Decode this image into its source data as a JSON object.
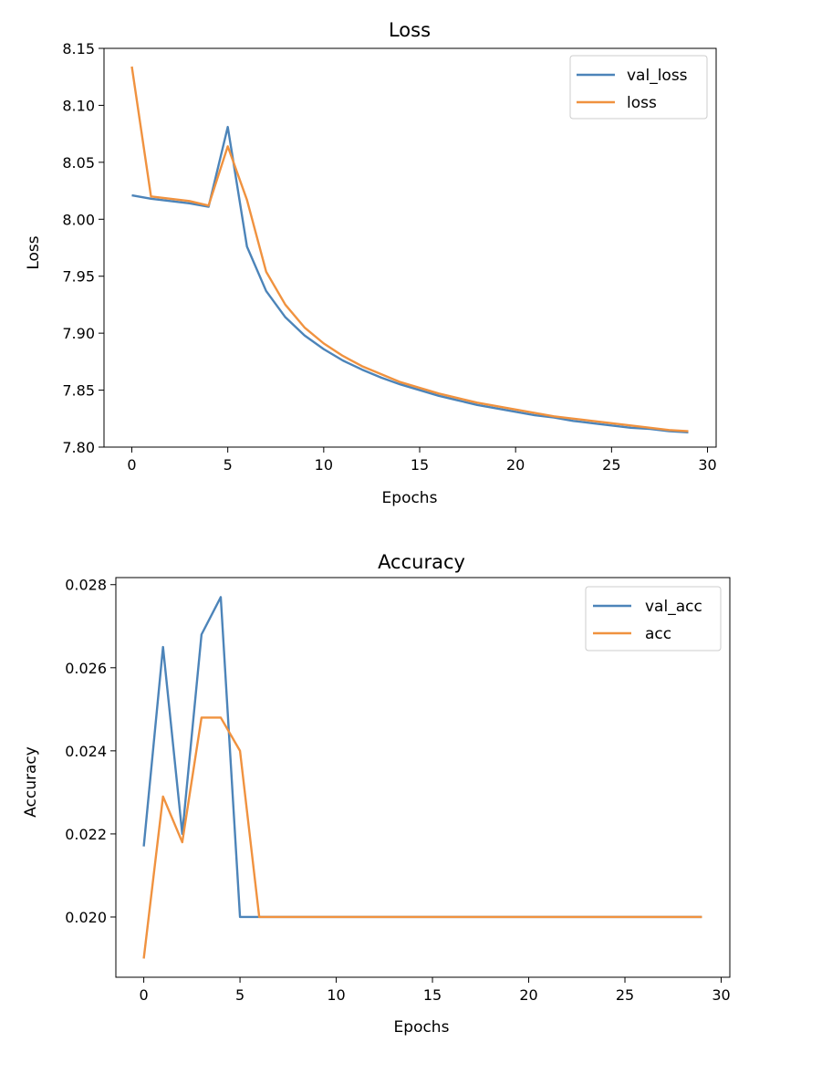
{
  "colors": {
    "blue": "#4c84b9",
    "orange": "#f0923f",
    "axes": "#000000",
    "legend_border": "#cccccc"
  },
  "chart_data": [
    {
      "type": "line",
      "title": "Loss",
      "xlabel": "Epochs",
      "ylabel": "Loss",
      "xlim": [
        -1.45,
        30.45
      ],
      "ylim": [
        7.8,
        8.15
      ],
      "xticks": [
        0,
        5,
        10,
        15,
        20,
        25,
        30
      ],
      "xtick_labels": [
        "0",
        "5",
        "10",
        "15",
        "20",
        "25",
        "30"
      ],
      "yticks": [
        7.8,
        7.85,
        7.9,
        7.95,
        8.0,
        8.05,
        8.1,
        8.15
      ],
      "ytick_labels": [
        "7.80",
        "7.85",
        "7.90",
        "7.95",
        "8.00",
        "8.05",
        "8.10",
        "8.15"
      ],
      "grid": false,
      "legend": "top-right",
      "x": [
        0,
        1,
        2,
        3,
        4,
        5,
        6,
        7,
        8,
        9,
        10,
        11,
        12,
        13,
        14,
        15,
        16,
        17,
        18,
        19,
        20,
        21,
        22,
        23,
        24,
        25,
        26,
        27,
        28,
        29
      ],
      "series": [
        {
          "name": "val_loss",
          "color": "blue",
          "values": [
            8.021,
            8.018,
            8.016,
            8.014,
            8.011,
            8.081,
            7.976,
            7.937,
            7.914,
            7.898,
            7.886,
            7.876,
            7.868,
            7.861,
            7.855,
            7.85,
            7.845,
            7.841,
            7.837,
            7.834,
            7.831,
            7.828,
            7.826,
            7.823,
            7.821,
            7.819,
            7.817,
            7.816,
            7.814,
            7.813
          ]
        },
        {
          "name": "loss",
          "color": "orange",
          "values": [
            8.134,
            8.02,
            8.018,
            8.016,
            8.012,
            8.064,
            8.017,
            7.954,
            7.925,
            7.905,
            7.891,
            7.88,
            7.871,
            7.864,
            7.857,
            7.852,
            7.847,
            7.843,
            7.839,
            7.836,
            7.833,
            7.83,
            7.827,
            7.825,
            7.823,
            7.821,
            7.819,
            7.817,
            7.815,
            7.814
          ]
        }
      ]
    },
    {
      "type": "line",
      "title": "Accuracy",
      "xlabel": "Epochs",
      "ylabel": "Accuracy",
      "xlim": [
        -1.45,
        30.45
      ],
      "ylim": [
        0.01855,
        0.02817
      ],
      "xticks": [
        0,
        5,
        10,
        15,
        20,
        25,
        30
      ],
      "xtick_labels": [
        "0",
        "5",
        "10",
        "15",
        "20",
        "25",
        "30"
      ],
      "yticks": [
        0.02,
        0.022,
        0.024,
        0.026,
        0.028
      ],
      "ytick_labels": [
        "0.020",
        "0.022",
        "0.024",
        "0.026",
        "0.028"
      ],
      "grid": false,
      "legend": "top-right",
      "x": [
        0,
        1,
        2,
        3,
        4,
        5,
        6,
        7,
        8,
        9,
        10,
        11,
        12,
        13,
        14,
        15,
        16,
        17,
        18,
        19,
        20,
        21,
        22,
        23,
        24,
        25,
        26,
        27,
        28,
        29
      ],
      "series": [
        {
          "name": "val_acc",
          "color": "blue",
          "values": [
            0.0217,
            0.0265,
            0.022,
            0.0268,
            0.0277,
            0.02,
            0.02,
            0.02,
            0.02,
            0.02,
            0.02,
            0.02,
            0.02,
            0.02,
            0.02,
            0.02,
            0.02,
            0.02,
            0.02,
            0.02,
            0.02,
            0.02,
            0.02,
            0.02,
            0.02,
            0.02,
            0.02,
            0.02,
            0.02,
            0.02
          ]
        },
        {
          "name": "acc",
          "color": "orange",
          "values": [
            0.019,
            0.0229,
            0.0218,
            0.0248,
            0.0248,
            0.024,
            0.02,
            0.02,
            0.02,
            0.02,
            0.02,
            0.02,
            0.02,
            0.02,
            0.02,
            0.02,
            0.02,
            0.02,
            0.02,
            0.02,
            0.02,
            0.02,
            0.02,
            0.02,
            0.02,
            0.02,
            0.02,
            0.02,
            0.02,
            0.02
          ]
        }
      ]
    }
  ]
}
